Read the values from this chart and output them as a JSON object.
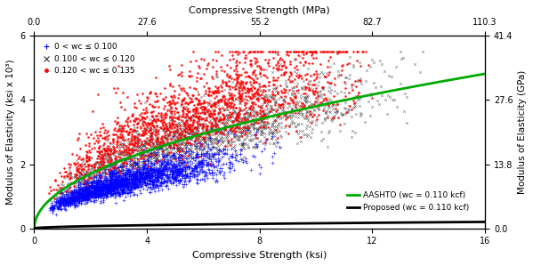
{
  "x_ksi_min": 0.0,
  "x_ksi_max": 16.0,
  "y_ksi_min": 0.0,
  "y_ksi_max": 6.0,
  "x_mpa_min": 0.0,
  "x_mpa_max": 110.3,
  "y_gpa_min": 0.0,
  "y_gpa_max": 41.4,
  "x_ticks_ksi": [
    0.0,
    4.0,
    8.0,
    12.0,
    16.0
  ],
  "x_ticks_mpa": [
    0.0,
    27.6,
    55.2,
    82.7,
    110.3
  ],
  "y_ticks_ksi": [
    0.0,
    2.0,
    4.0,
    6.0
  ],
  "y_ticks_gpa": [
    0.0,
    13.8,
    27.6,
    41.4
  ],
  "xlabel_bottom": "Compressive Strength (ksi)",
  "xlabel_top": "Compressive Strength (MPa)",
  "ylabel_left": "Modulus of Elasticity (ksi x 10³)",
  "ylabel_right": "Modulus of Elasticity (GPa)",
  "legend_aashto": "AASHTO (wc = 0.110 kcf)",
  "legend_proposed": "Proposed (wc = 0.110 kcf)",
  "legend_lw1": "0 < wc ≤ 0.100",
  "legend_lw2": "0.100 < wc ≤ 0.120",
  "legend_lw3": "0.120 < wc ≤ 0.135",
  "aashto_color": "#00aa00",
  "proposed_color": "#000000",
  "scatter_color_blue": "#0000ff",
  "scatter_color_black": "#333333",
  "scatter_color_red": "#ff0000",
  "n_blue": 2556,
  "n_black": 2000,
  "n_red": 1795,
  "seed": 42
}
